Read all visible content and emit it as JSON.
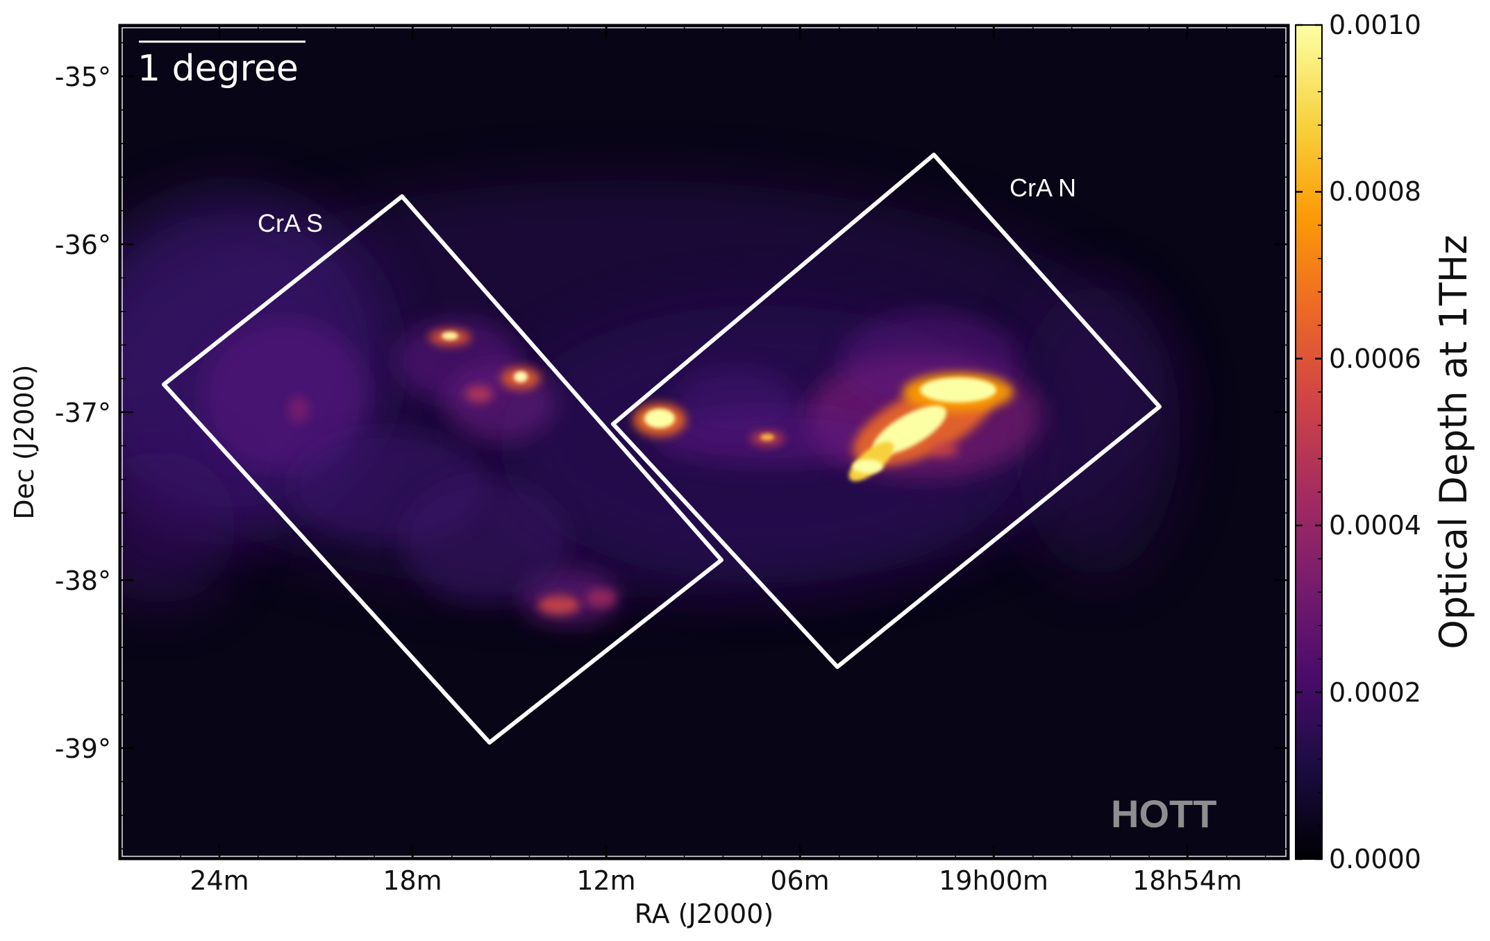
{
  "figure": {
    "ra_axis_label": "RA (J2000)",
    "dec_axis_label": "Dec (J2000)",
    "ra_ticks": [
      "24m",
      "18m",
      "12m",
      "06m",
      "19h00m",
      "18h54m"
    ],
    "dec_ticks": [
      "-35°",
      "-36°",
      "-37°",
      "-38°",
      "-39°"
    ],
    "scale_bar_label": "1 degree",
    "instrument_label": "HOTT",
    "regions": [
      {
        "label": "CrA S"
      },
      {
        "label": "CrA N"
      }
    ]
  },
  "colorbar": {
    "title": "Optical Depth at 1THz",
    "tick_labels": [
      "0.0000",
      "0.0002",
      "0.0004",
      "0.0006",
      "0.0008",
      "0.0010"
    ],
    "range": [
      0.0,
      0.001
    ],
    "colormap": "inferno",
    "colors": [
      "#000004",
      "#1b0c41",
      "#4a0c6b",
      "#781c6d",
      "#a52c60",
      "#cf4446",
      "#ed6925",
      "#fb9b06",
      "#f7d13d",
      "#fcffa4"
    ]
  }
}
